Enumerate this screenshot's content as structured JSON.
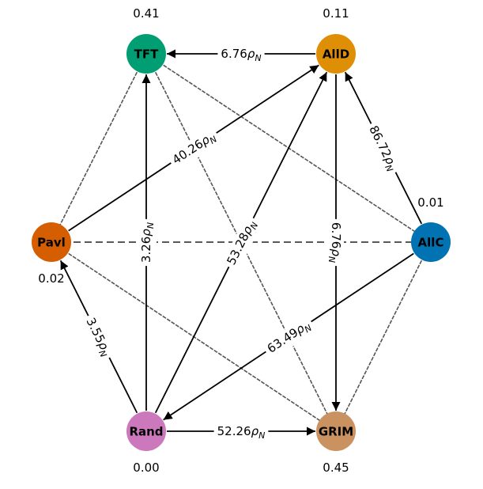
{
  "nodes": [
    {
      "id": "TFT",
      "label": "TFT",
      "value": "0.41",
      "color": "#029e73"
    },
    {
      "id": "AllD",
      "label": "AllD",
      "value": "0.11",
      "color": "#de8f05"
    },
    {
      "id": "AllC",
      "label": "AllC",
      "value": "0.01",
      "color": "#0173b2"
    },
    {
      "id": "GRIM",
      "label": "GRIM",
      "value": "0.45",
      "color": "#ca9161"
    },
    {
      "id": "Rand",
      "label": "Rand",
      "value": "0.00",
      "color": "#cc78bc"
    },
    {
      "id": "Pavl",
      "label": "Pavl",
      "value": "0.02",
      "color": "#d55e00"
    }
  ],
  "directed_edges": [
    {
      "from": "AllD",
      "to": "TFT",
      "coef": "6.76",
      "unit": "ρ",
      "subscript": "N"
    },
    {
      "from": "AllC",
      "to": "AllD",
      "coef": "86.72",
      "unit": "ρ",
      "subscript": "N"
    },
    {
      "from": "Pavl",
      "to": "AllD",
      "coef": "40.26",
      "unit": "ρ",
      "subscript": "N"
    },
    {
      "from": "Rand",
      "to": "TFT",
      "coef": "3.26",
      "unit": "ρ",
      "subscript": "N"
    },
    {
      "from": "Rand",
      "to": "AllD",
      "coef": "53.28",
      "unit": "ρ",
      "subscript": "N"
    },
    {
      "from": "AllD",
      "to": "GRIM",
      "coef": "6.76",
      "unit": "ρ",
      "subscript": "N"
    },
    {
      "from": "AllC",
      "to": "Rand",
      "coef": "63.49",
      "unit": "ρ",
      "subscript": "N"
    },
    {
      "from": "Rand",
      "to": "Pavl",
      "coef": "3.55",
      "unit": "ρ",
      "subscript": "N"
    },
    {
      "from": "Rand",
      "to": "GRIM",
      "coef": "52.26",
      "unit": "ρ",
      "subscript": "N"
    }
  ],
  "neutral_edges": [
    {
      "a": "TFT",
      "b": "Pavl"
    },
    {
      "a": "TFT",
      "b": "AllC"
    },
    {
      "a": "TFT",
      "b": "GRIM"
    },
    {
      "a": "Pavl",
      "b": "AllC"
    },
    {
      "a": "Pavl",
      "b": "GRIM"
    },
    {
      "a": "AllC",
      "b": "GRIM"
    }
  ]
}
